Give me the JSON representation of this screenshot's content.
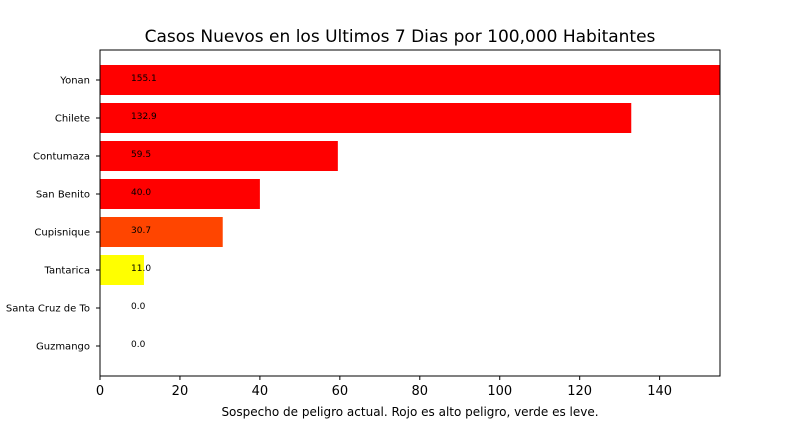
{
  "chart_data": {
    "type": "bar",
    "orientation": "horizontal",
    "title": "Casos Nuevos en los Ultimos 7 Dias por 100,000 Habitantes",
    "xlabel": "Sospecho de peligro actual. Rojo es alto peligro, verde es leve.",
    "ylabel": "",
    "xlim": [
      0,
      155.1
    ],
    "xticks": [
      "0",
      "20",
      "40",
      "60",
      "80",
      "100",
      "120",
      "140"
    ],
    "categories": [
      "Yonan",
      "Chilete",
      "Contumaza",
      "San Benito",
      "Cupisnique",
      "Tantarica",
      "Santa Cruz de To",
      "Guzmango"
    ],
    "values": [
      155.1,
      132.9,
      59.5,
      40.0,
      30.7,
      11.0,
      0.0,
      0.0
    ],
    "value_labels": [
      "155.1",
      "132.9",
      "59.5",
      "40.0",
      "30.7",
      "11.0",
      "0.0",
      "0.0"
    ],
    "colors": [
      "#ff0000",
      "#ff0000",
      "#ff0000",
      "#ff0000",
      "#ff4500",
      "#ffff00",
      "#ffffff",
      "#ffffff"
    ],
    "grid": false,
    "legend": "none"
  }
}
